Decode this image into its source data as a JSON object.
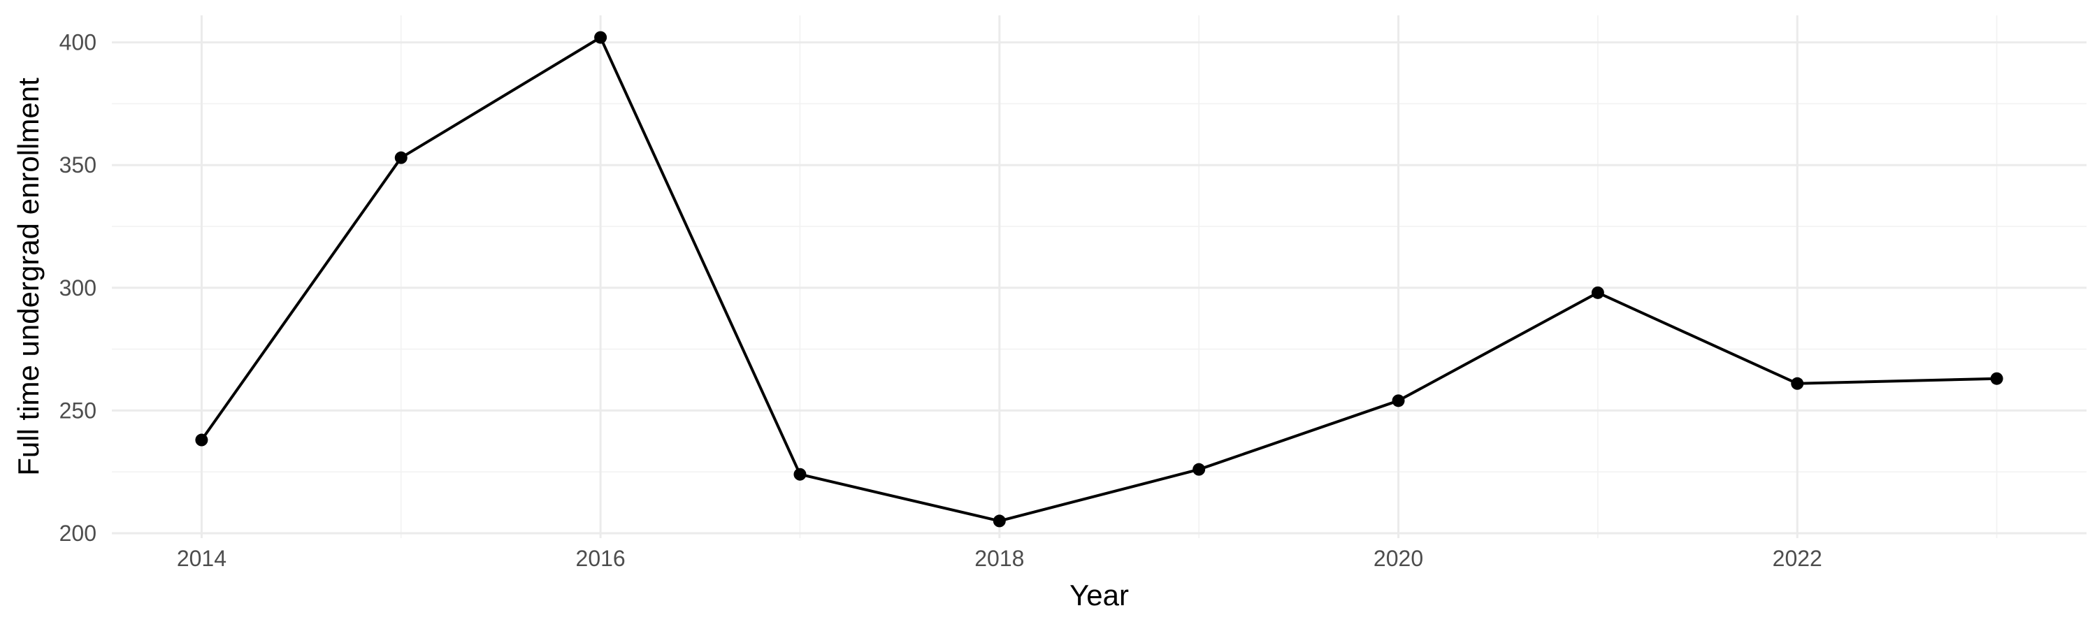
{
  "chart_data": {
    "type": "line",
    "title": "",
    "xlabel": "Year",
    "ylabel": "Full time undergrad enrollment",
    "x": [
      2014,
      2015,
      2016,
      2017,
      2018,
      2019,
      2020,
      2021,
      2022,
      2023
    ],
    "series": [
      {
        "name": "",
        "values": [
          238,
          353,
          402,
          224,
          205,
          226,
          254,
          298,
          261,
          263
        ]
      }
    ],
    "xlim": [
      2013.55,
      2023.45
    ],
    "ylim": [
      198,
      411
    ],
    "x_ticks": [
      2014,
      2016,
      2018,
      2020,
      2022
    ],
    "x_tick_labels": [
      "2014",
      "2016",
      "2018",
      "2020",
      "2022"
    ],
    "y_ticks": [
      200,
      250,
      300,
      350,
      400
    ],
    "y_tick_labels": [
      "200",
      "250",
      "300",
      "350",
      "400"
    ],
    "grid": true,
    "legend": "none",
    "line_color": "#000000",
    "background": "#ffffff"
  }
}
